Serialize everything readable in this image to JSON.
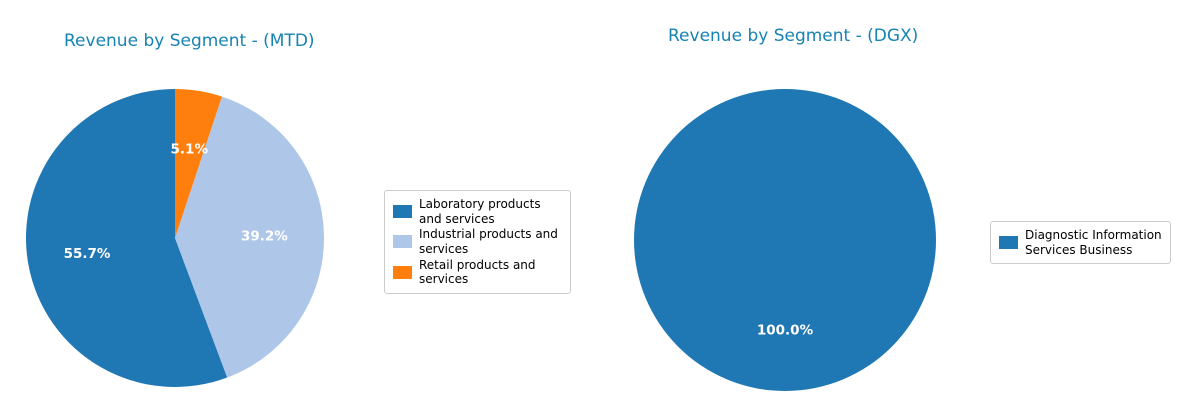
{
  "page": {
    "background": "#ffffff"
  },
  "chart_data": [
    {
      "type": "pie",
      "title": "Revenue by Segment - (MTD)",
      "title_color": "#1783b3",
      "labels": [
        "Laboratory products and services",
        "Industrial products and services",
        "Retail products and services"
      ],
      "values": [
        55.7,
        39.2,
        5.1
      ],
      "pct_labels": [
        "55.7%",
        "39.2%",
        "5.1%"
      ],
      "colors": [
        "#1f77b4",
        "#aec7e8",
        "#ff7f0e"
      ],
      "pct_label_color": "#ffffff",
      "start_angle": 90,
      "counterclock": true,
      "legend_position": "center right",
      "grid": false
    },
    {
      "type": "pie",
      "title": "Revenue by Segment - (DGX)",
      "title_color": "#1783b3",
      "labels": [
        "Diagnostic Information Services Business"
      ],
      "values": [
        100.0
      ],
      "pct_labels": [
        "100.0%"
      ],
      "colors": [
        "#1f77b4"
      ],
      "pct_label_color": "#ffffff",
      "start_angle": 90,
      "counterclock": true,
      "legend_position": "center right",
      "grid": false
    }
  ]
}
